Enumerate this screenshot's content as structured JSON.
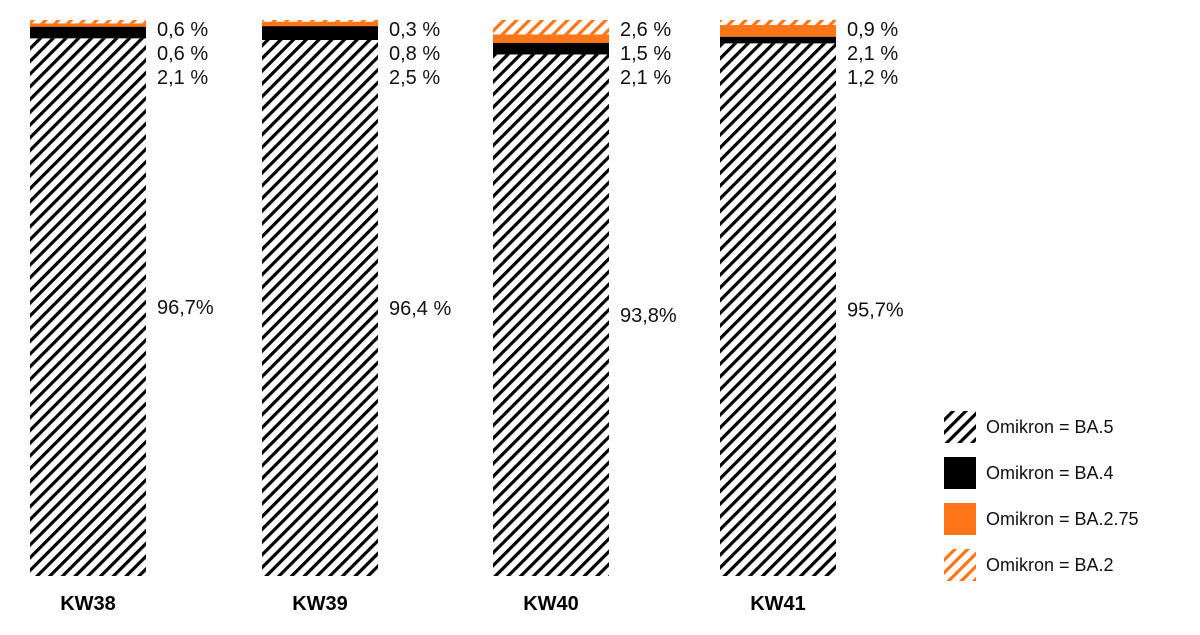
{
  "chart_data": {
    "type": "bar",
    "stacked": true,
    "normalized": true,
    "categories": [
      "KW38",
      "KW39",
      "KW40",
      "KW41"
    ],
    "series": [
      {
        "name": "Omikron = BA.5",
        "values": [
          96.7,
          96.4,
          93.8,
          95.7
        ],
        "labels": [
          "96,7%",
          "96,4 %",
          "93,8%",
          "95,7%"
        ],
        "fill": "hatch",
        "color": "#000000"
      },
      {
        "name": "Omikron = BA.4",
        "values": [
          2.1,
          2.5,
          2.1,
          1.2
        ],
        "labels": [
          "2,1 %",
          "2,5 %",
          "2,1 %",
          "1,2 %"
        ],
        "fill": "solid",
        "color": "#000000"
      },
      {
        "name": "Omikron = BA.2.75",
        "values": [
          0.6,
          0.8,
          1.5,
          2.1
        ],
        "labels": [
          "0,6 %",
          "0,8 %",
          "1,5 %",
          "2,1 %"
        ],
        "fill": "solid",
        "color": "#ff7518"
      },
      {
        "name": "Omikron = BA.2",
        "values": [
          0.6,
          0.3,
          2.6,
          0.9
        ],
        "labels": [
          "0,6 %",
          "0,3 %",
          "2,6 %",
          "0,9 %"
        ],
        "fill": "hatch",
        "color": "#ff7518"
      }
    ],
    "ylim": [
      0,
      100
    ],
    "title": "",
    "xlabel": "",
    "ylabel": "",
    "grid": false,
    "legend_position": "bottom-right"
  },
  "colors": {
    "black": "#000000",
    "orange": "#ff7518",
    "text": "#111111"
  }
}
